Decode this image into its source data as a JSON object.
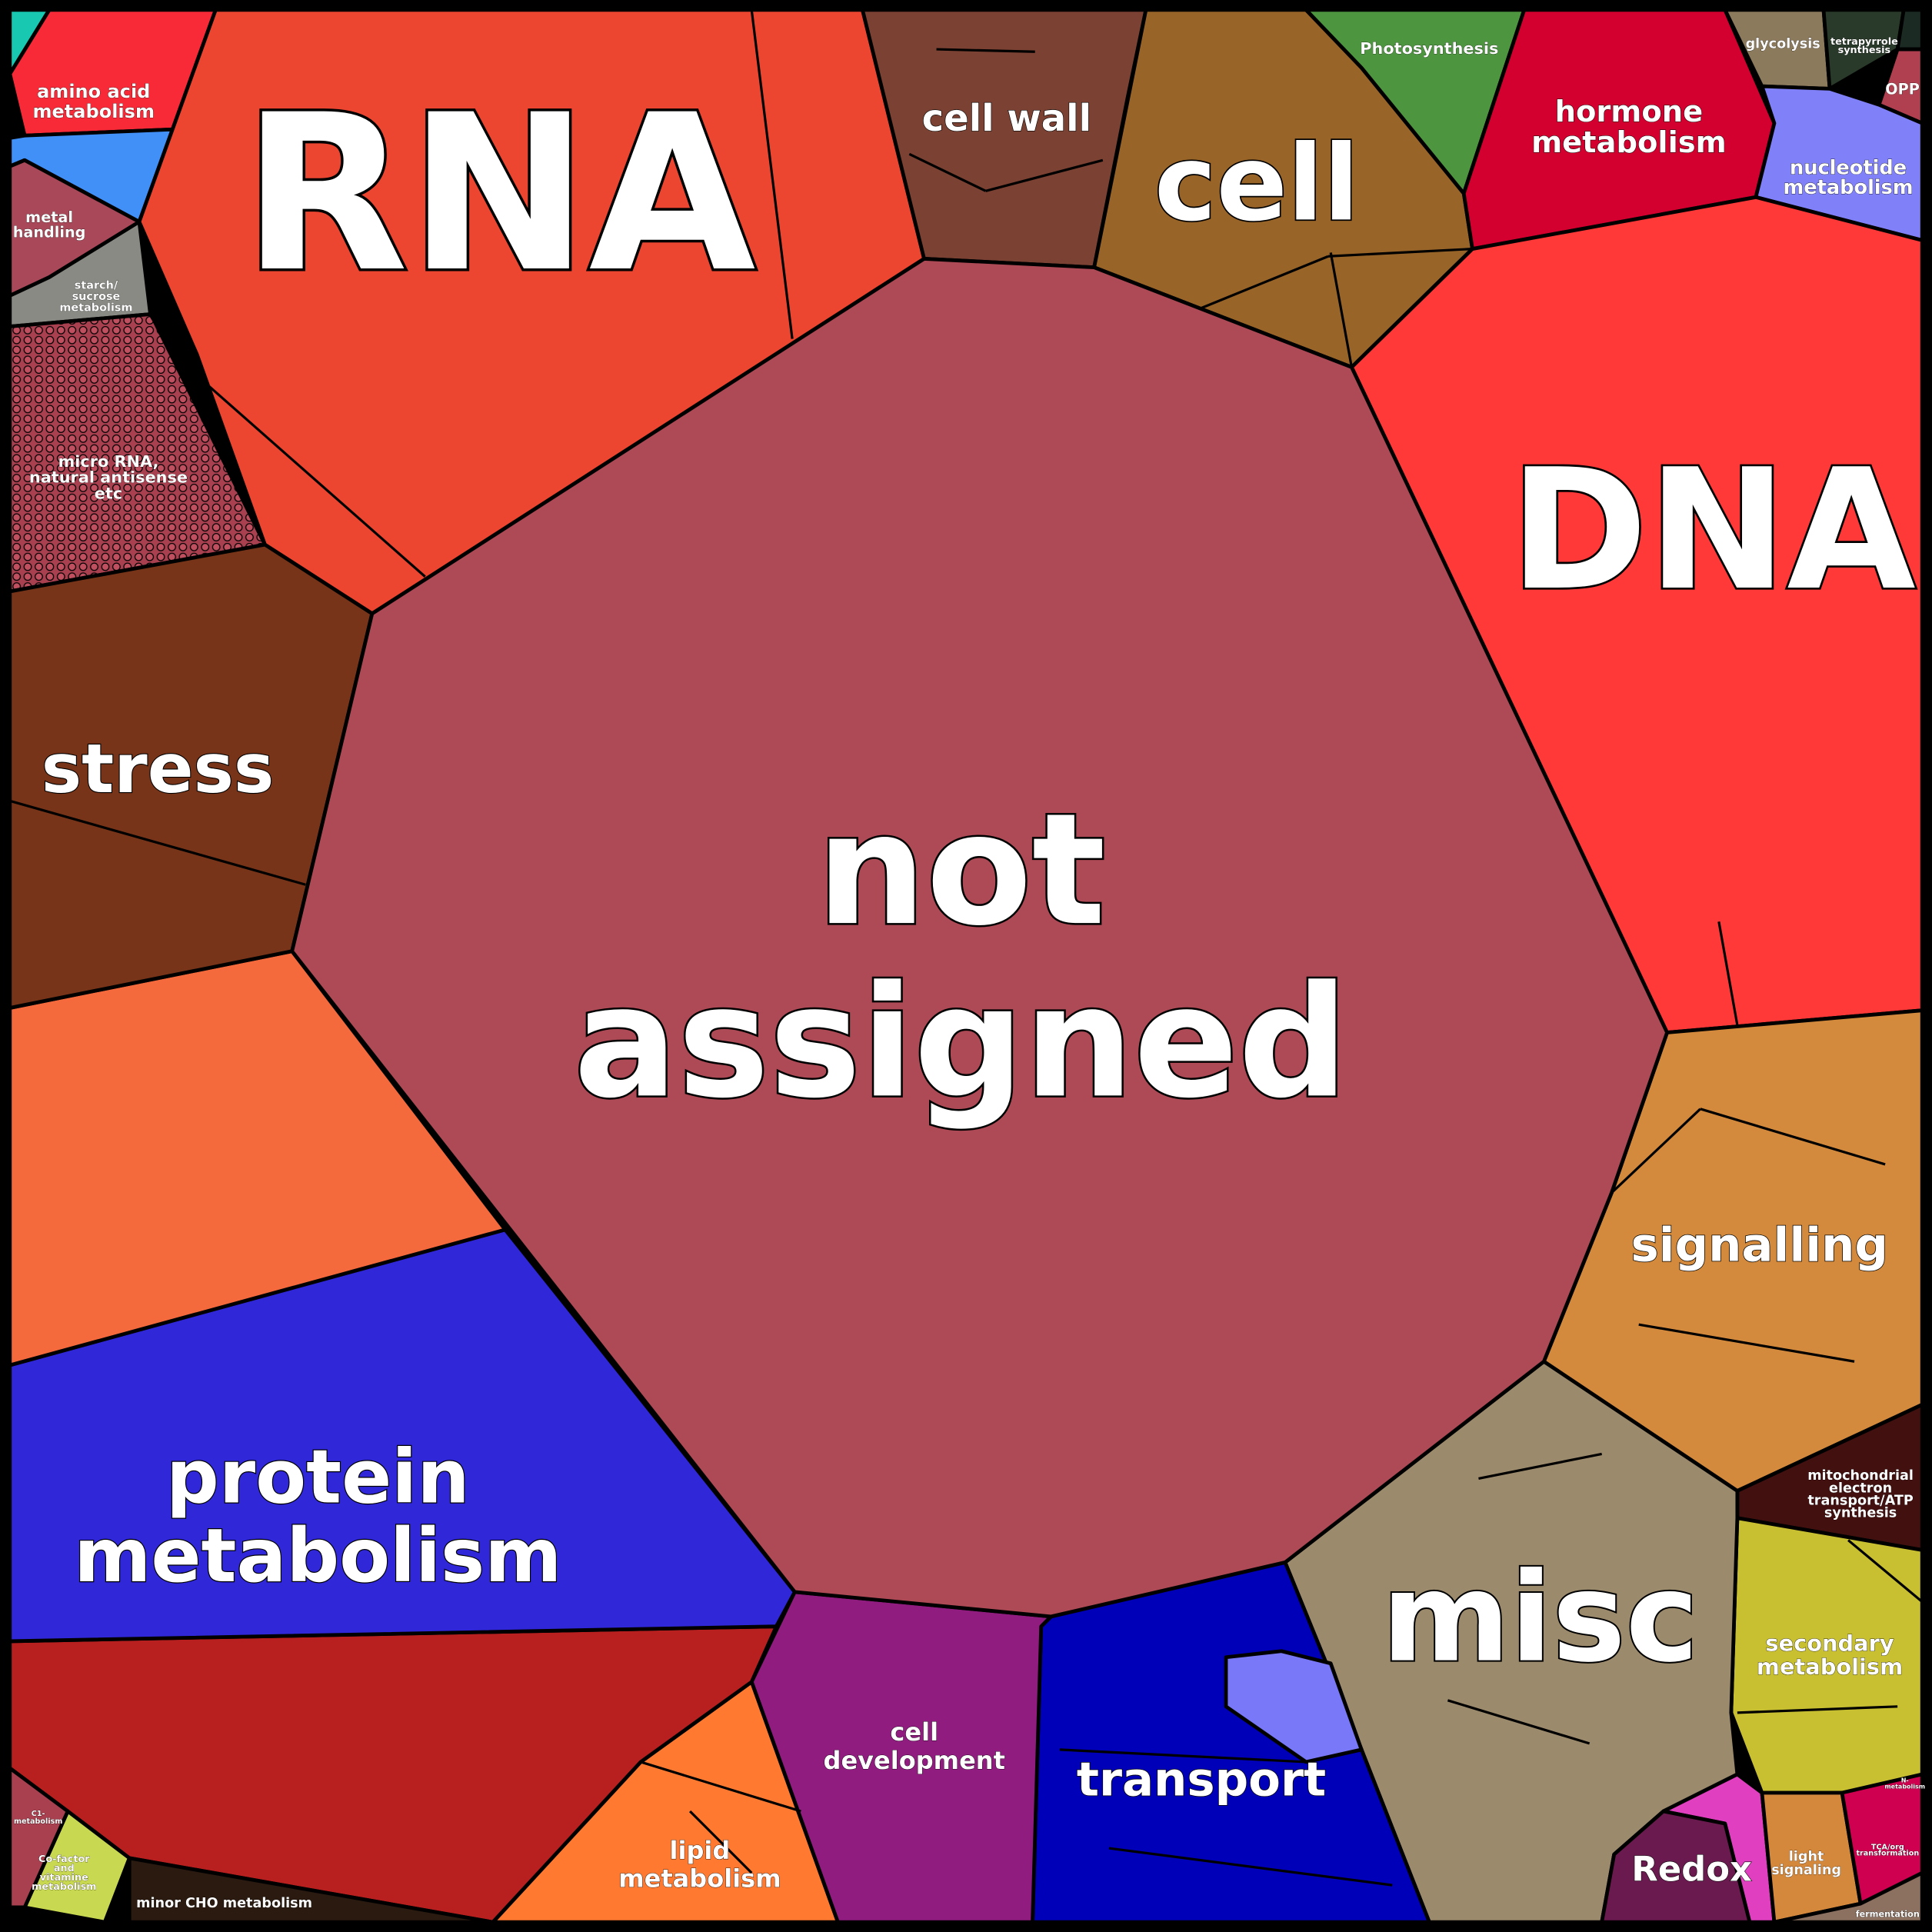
{
  "regions": [
    {
      "lines": [
        "not",
        "assigned"
      ]
    },
    {
      "lines": [
        "RNA"
      ]
    },
    {
      "lines": [
        "DNA"
      ]
    },
    {
      "lines": [
        "misc"
      ]
    },
    {
      "lines": [
        "cell"
      ]
    },
    {
      "lines": [
        "protein",
        "metabolism"
      ]
    },
    {
      "lines": [
        "stress"
      ]
    },
    {
      "lines": [
        "signalling"
      ]
    },
    {
      "lines": [
        "transport"
      ]
    },
    {
      "lines": [
        "cell wall"
      ]
    },
    {
      "lines": [
        "hormone",
        "metabolism"
      ]
    },
    {
      "lines": [
        "nucleotide",
        "metabolism"
      ]
    },
    {
      "lines": [
        "secondary",
        "metabolism"
      ]
    },
    {
      "lines": [
        "Redox"
      ]
    },
    {
      "lines": [
        "cell",
        "development"
      ]
    },
    {
      "lines": [
        "lipid",
        "metabolism"
      ]
    },
    {
      "lines": [
        "amino acid",
        "metabolism"
      ]
    },
    {
      "lines": [
        "micro RNA,",
        "natural antisense",
        "etc"
      ]
    },
    {
      "lines": [
        "metal",
        "handling"
      ]
    },
    {
      "lines": [
        "starch/",
        "sucrose",
        "metabolism"
      ]
    },
    {
      "lines": [
        "Photosynthesis"
      ]
    },
    {
      "lines": [
        "glycolysis"
      ]
    },
    {
      "lines": [
        "tetrapyrrole",
        "synthesis"
      ]
    },
    {
      "lines": [
        "OPP"
      ]
    },
    {
      "lines": [
        "mitochondrial",
        "electron",
        "transport/ATP",
        "synthesis"
      ]
    },
    {
      "lines": [
        "light",
        "signaling"
      ]
    },
    {
      "lines": [
        "TCA/org",
        "transformation"
      ]
    },
    {
      "lines": [
        "fermentation"
      ]
    },
    {
      "lines": [
        "minor CHO metabolism"
      ]
    },
    {
      "lines": [
        "Co-factor",
        "and",
        "vitamine",
        "metabolism"
      ]
    },
    {
      "lines": [
        "C1-",
        "metabolism"
      ]
    },
    {
      "lines": [
        "N-",
        "metabolism"
      ]
    }
  ]
}
